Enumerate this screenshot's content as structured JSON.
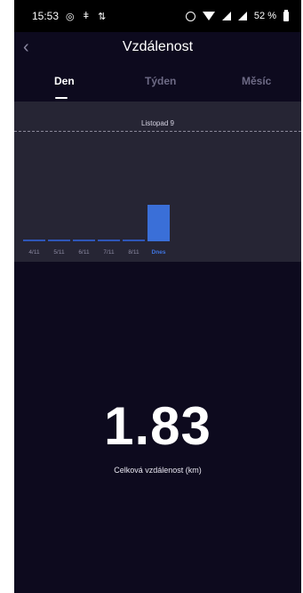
{
  "status_bar": {
    "time": "15:53",
    "battery": "52 %",
    "icons": [
      "instagram-icon",
      "flashlight-icon",
      "data-icon",
      "alarm-icon",
      "wifi-icon",
      "signal-icon",
      "signal-icon",
      "battery-icon"
    ]
  },
  "header": {
    "title": "Vzdálenost"
  },
  "tabs": {
    "day": "Den",
    "week": "Týden",
    "month": "Měsíc",
    "selected": "day"
  },
  "chart_data": {
    "type": "bar",
    "title": "Listopad 9",
    "categories": [
      "4/11",
      "5/11",
      "6/11",
      "7/11",
      "8/11",
      "Dnes"
    ],
    "values": [
      0,
      0,
      0,
      0,
      0,
      1.83
    ],
    "highlight": "Dnes",
    "colors": {
      "bar": "#3a6fd8",
      "axis": "#2e56b8",
      "label": "#8d8ba3",
      "highlight_label": "#3f74e0"
    }
  },
  "summary": {
    "value": "1.83",
    "label": "Celková vzdálenost (km)"
  }
}
